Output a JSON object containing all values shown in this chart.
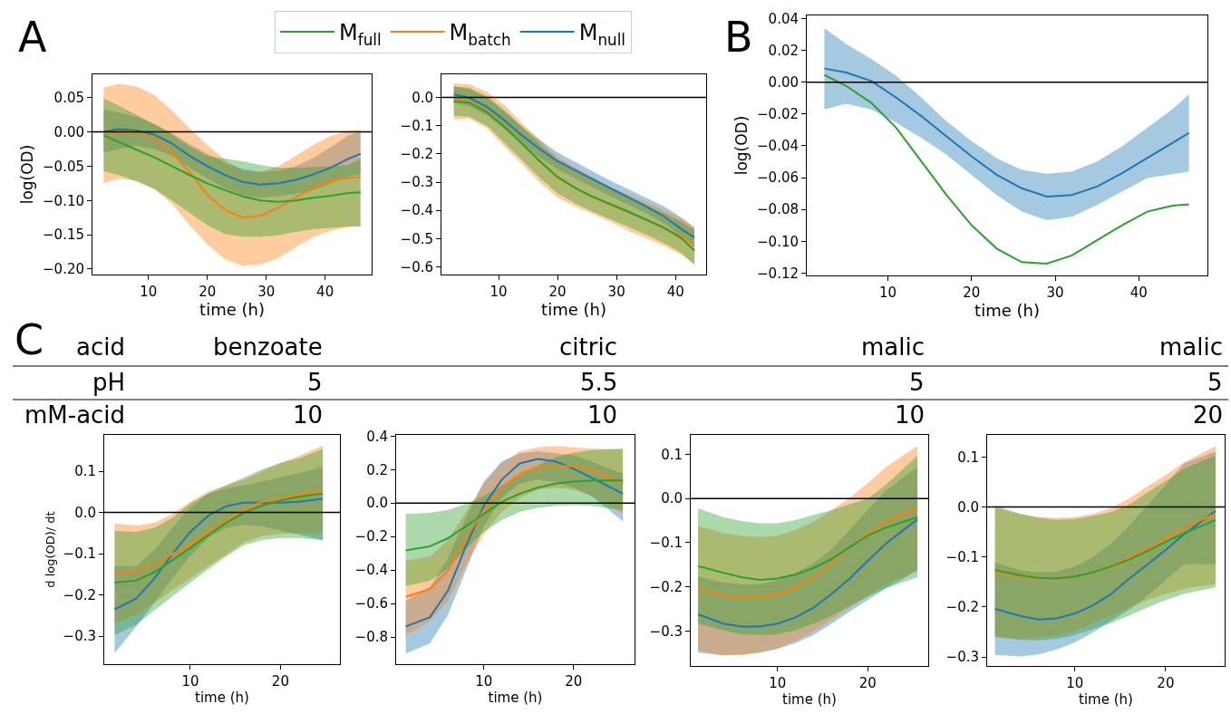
{
  "chart_data": [
    {
      "type": "line",
      "annotations": [
        "A"
      ],
      "xlabel": "time (h)",
      "ylabel": "log(OD)",
      "legend": "top",
      "x": [
        2.4,
        5,
        8,
        11,
        14,
        17,
        20,
        23,
        26,
        29,
        32,
        35,
        38,
        41,
        44,
        46
      ],
      "xlim": [
        0.5,
        47.9
      ],
      "xticks": [
        10,
        20,
        30,
        40
      ],
      "ylim": [
        -0.208,
        0.084
      ],
      "yticks": [
        {
          "value": 0.05,
          "label": "0.05"
        },
        {
          "value": 0,
          "label": "0.00"
        },
        {
          "value": -0.05,
          "label": "−0.05"
        },
        {
          "value": -0.1,
          "label": "−0.10"
        },
        {
          "value": -0.15,
          "label": "−0.15"
        },
        {
          "value": -0.2,
          "label": "−0.20"
        }
      ],
      "ref_lines": [
        {
          "axis": "y",
          "value": 0,
          "color": "#000000"
        }
      ],
      "series": [
        {
          "name": "M$_{null}$",
          "color": "#1f77b4",
          "values": [
            0.0,
            0.004,
            0.002,
            -0.004,
            -0.017,
            -0.035,
            -0.05,
            -0.063,
            -0.073,
            -0.077,
            -0.075,
            -0.07,
            -0.062,
            -0.052,
            -0.039,
            -0.032
          ],
          "upper": [
            0.033,
            0.028,
            0.022,
            0.012,
            -0.002,
            -0.018,
            -0.032,
            -0.045,
            -0.054,
            -0.058,
            -0.057,
            -0.05,
            -0.038,
            -0.022,
            -0.005,
            0.0
          ],
          "lower": [
            -0.03,
            -0.025,
            -0.02,
            -0.025,
            -0.035,
            -0.052,
            -0.068,
            -0.082,
            -0.092,
            -0.096,
            -0.094,
            -0.09,
            -0.085,
            -0.075,
            -0.065,
            -0.062
          ]
        },
        {
          "name": "M$_{batch}$",
          "color": "#ff7f0e",
          "values": [
            -0.002,
            0.0,
            0.0,
            -0.009,
            -0.03,
            -0.059,
            -0.092,
            -0.114,
            -0.125,
            -0.122,
            -0.111,
            -0.096,
            -0.081,
            -0.071,
            -0.067,
            -0.066
          ],
          "upper": [
            0.065,
            0.07,
            0.066,
            0.054,
            0.031,
            0.005,
            -0.019,
            -0.041,
            -0.057,
            -0.059,
            -0.05,
            -0.035,
            -0.019,
            -0.006,
            0.001,
            0.003
          ],
          "lower": [
            -0.075,
            -0.068,
            -0.072,
            -0.083,
            -0.105,
            -0.136,
            -0.164,
            -0.186,
            -0.195,
            -0.193,
            -0.184,
            -0.168,
            -0.153,
            -0.144,
            -0.139,
            -0.138
          ]
        },
        {
          "name": "M$_{full}$",
          "color": "#2ca02c",
          "values": [
            -0.005,
            -0.015,
            -0.026,
            -0.037,
            -0.05,
            -0.063,
            -0.075,
            -0.085,
            -0.094,
            -0.1,
            -0.102,
            -0.1,
            -0.096,
            -0.093,
            -0.089,
            -0.088
          ],
          "upper": [
            0.049,
            0.038,
            0.025,
            0.011,
            -0.004,
            -0.021,
            -0.035,
            -0.039,
            -0.043,
            -0.048,
            -0.052,
            -0.052,
            -0.051,
            -0.05,
            -0.048,
            -0.039
          ],
          "lower": [
            -0.057,
            -0.063,
            -0.072,
            -0.083,
            -0.1,
            -0.118,
            -0.136,
            -0.149,
            -0.153,
            -0.153,
            -0.151,
            -0.146,
            -0.142,
            -0.14,
            -0.138,
            -0.138
          ]
        }
      ]
    },
    {
      "type": "line",
      "xlabel": "time (h)",
      "x": [
        2.4,
        5,
        8,
        11,
        14,
        17,
        20,
        23,
        26,
        29,
        32,
        35,
        38,
        41,
        43.2
      ],
      "xlim": [
        0.3,
        45.2
      ],
      "xticks": [
        10,
        20,
        30,
        40
      ],
      "ylim": [
        -0.627,
        0.082
      ],
      "yticks": [
        {
          "value": 0,
          "label": "0.0"
        },
        {
          "value": -0.1,
          "label": "−0.1"
        },
        {
          "value": -0.2,
          "label": "−0.2"
        },
        {
          "value": -0.3,
          "label": "−0.3"
        },
        {
          "value": -0.4,
          "label": "−0.4"
        },
        {
          "value": -0.5,
          "label": "−0.5"
        },
        {
          "value": -0.6,
          "label": "−0.6"
        }
      ],
      "ref_lines": [
        {
          "axis": "y",
          "value": 0,
          "color": "#000000"
        }
      ],
      "series": [
        {
          "color": "#1f77b4",
          "values": [
            0.011,
            -0.001,
            -0.033,
            -0.081,
            -0.135,
            -0.183,
            -0.226,
            -0.258,
            -0.29,
            -0.322,
            -0.354,
            -0.386,
            -0.42,
            -0.466,
            -0.496
          ],
          "upper": [
            0.04,
            0.03,
            0.0,
            -0.05,
            -0.103,
            -0.15,
            -0.195,
            -0.228,
            -0.262,
            -0.295,
            -0.325,
            -0.355,
            -0.385,
            -0.425,
            -0.46
          ],
          "lower": [
            -0.02,
            -0.03,
            -0.063,
            -0.112,
            -0.165,
            -0.213,
            -0.255,
            -0.288,
            -0.318,
            -0.35,
            -0.38,
            -0.41,
            -0.445,
            -0.49,
            -0.53
          ]
        },
        {
          "color": "#ff7f0e",
          "values": [
            -0.01,
            -0.014,
            -0.049,
            -0.103,
            -0.161,
            -0.226,
            -0.284,
            -0.322,
            -0.354,
            -0.381,
            -0.407,
            -0.434,
            -0.461,
            -0.491,
            -0.525
          ],
          "upper": [
            0.05,
            0.047,
            0.02,
            -0.028,
            -0.092,
            -0.151,
            -0.21,
            -0.247,
            -0.284,
            -0.317,
            -0.343,
            -0.37,
            -0.397,
            -0.429,
            -0.459
          ],
          "lower": [
            -0.078,
            -0.074,
            -0.108,
            -0.174,
            -0.236,
            -0.301,
            -0.354,
            -0.386,
            -0.413,
            -0.44,
            -0.472,
            -0.498,
            -0.525,
            -0.557,
            -0.587
          ]
        },
        {
          "color": "#2ca02c",
          "values": [
            -0.014,
            -0.018,
            -0.052,
            -0.105,
            -0.164,
            -0.226,
            -0.281,
            -0.32,
            -0.352,
            -0.378,
            -0.404,
            -0.432,
            -0.461,
            -0.498,
            -0.542
          ],
          "upper": [
            0.038,
            0.035,
            0.005,
            -0.045,
            -0.105,
            -0.165,
            -0.22,
            -0.255,
            -0.29,
            -0.32,
            -0.35,
            -0.38,
            -0.41,
            -0.44,
            -0.47
          ],
          "lower": [
            -0.065,
            -0.068,
            -0.1,
            -0.16,
            -0.222,
            -0.285,
            -0.34,
            -0.375,
            -0.405,
            -0.432,
            -0.458,
            -0.485,
            -0.515,
            -0.55,
            -0.595
          ]
        }
      ]
    },
    {
      "type": "line",
      "annotations": [
        "B"
      ],
      "xlabel": "time (h)",
      "ylabel": "log(OD)",
      "x": [
        2.4,
        5,
        8,
        11,
        14,
        17,
        20,
        23,
        26,
        29,
        32,
        35,
        38,
        41,
        44,
        46
      ],
      "xlim": [
        0.3,
        48.2
      ],
      "xticks": [
        10,
        20,
        30,
        40
      ],
      "ylim": [
        -0.1215,
        0.042
      ],
      "yticks": [
        {
          "value": 0.04,
          "label": "0.04"
        },
        {
          "value": 0.02,
          "label": "0.02"
        },
        {
          "value": 0,
          "label": "0.00"
        },
        {
          "value": -0.02,
          "label": "−0.02"
        },
        {
          "value": -0.04,
          "label": "−0.04"
        },
        {
          "value": -0.06,
          "label": "−0.06"
        },
        {
          "value": -0.08,
          "label": "−0.08"
        },
        {
          "value": -0.1,
          "label": "−0.10"
        },
        {
          "value": -0.12,
          "label": "−0.12"
        }
      ],
      "ref_lines": [
        {
          "axis": "y",
          "value": 0,
          "color": "#000000"
        }
      ],
      "series": [
        {
          "color": "#1f77b4",
          "values": [
            0.0086,
            0.0061,
            0.0008,
            -0.0097,
            -0.0213,
            -0.034,
            -0.0466,
            -0.0582,
            -0.0667,
            -0.0719,
            -0.0709,
            -0.0656,
            -0.0572,
            -0.0477,
            -0.0382,
            -0.0319
          ],
          "upper": [
            0.034,
            0.024,
            0.0146,
            0.004,
            -0.0097,
            -0.0245,
            -0.0371,
            -0.0477,
            -0.0551,
            -0.0576,
            -0.0561,
            -0.0498,
            -0.0403,
            -0.0287,
            -0.0171,
            -0.0076
          ],
          "lower": [
            -0.0171,
            -0.0135,
            -0.0171,
            -0.0255,
            -0.035,
            -0.0456,
            -0.0582,
            -0.0709,
            -0.0814,
            -0.0867,
            -0.0846,
            -0.0772,
            -0.0688,
            -0.0603,
            -0.0578,
            -0.0561
          ]
        },
        {
          "color": "#2ca02c",
          "values": [
            0.0046,
            -0.0023,
            -0.0129,
            -0.0287,
            -0.0498,
            -0.0709,
            -0.0899,
            -0.1046,
            -0.1131,
            -0.1141,
            -0.1089,
            -0.0994,
            -0.0899,
            -0.0814,
            -0.0776,
            -0.0768
          ]
        }
      ]
    },
    {
      "type": "other",
      "title": "C",
      "annotations": [
        "acid",
        "benzoate",
        "citric",
        "malic",
        "malic",
        "pH",
        "5",
        "5.5",
        "5",
        "5",
        "mM-acid",
        "10",
        "10",
        "10",
        "20"
      ]
    },
    {
      "type": "line",
      "xlabel": "time (h)",
      "ylabel": "d log(OD)/ dt",
      "x": [
        1.6,
        4,
        6,
        8,
        10,
        12,
        14,
        16,
        18,
        20,
        22,
        24.7
      ],
      "xlim": [
        0.45,
        26.6
      ],
      "xticks": [
        10,
        20
      ],
      "ylim": [
        -0.368,
        0.188
      ],
      "yticks": [
        {
          "value": 0.1,
          "label": "0.1"
        },
        {
          "value": 0,
          "label": "0.0"
        },
        {
          "value": -0.1,
          "label": "−0.1"
        },
        {
          "value": -0.2,
          "label": "−0.2"
        },
        {
          "value": -0.3,
          "label": "−0.3"
        }
      ],
      "ref_lines": [
        {
          "axis": "y",
          "value": 0,
          "color": "#000000"
        }
      ],
      "series": [
        {
          "color": "#1f77b4",
          "values": [
            -0.235,
            -0.209,
            -0.16,
            -0.101,
            -0.047,
            -0.008,
            0.015,
            0.024,
            0.024,
            0.024,
            0.026,
            0.033
          ],
          "upper": [
            -0.13,
            -0.13,
            -0.091,
            -0.037,
            0.012,
            0.046,
            0.058,
            0.066,
            0.075,
            0.085,
            0.095,
            0.11
          ],
          "lower": [
            -0.341,
            -0.277,
            -0.219,
            -0.16,
            -0.106,
            -0.062,
            -0.037,
            -0.03,
            -0.034,
            -0.044,
            -0.054,
            -0.067
          ]
        },
        {
          "color": "#ff7f0e",
          "values": [
            -0.148,
            -0.142,
            -0.125,
            -0.101,
            -0.076,
            -0.047,
            -0.018,
            0.009,
            0.026,
            0.033,
            0.043,
            0.056
          ],
          "upper": [
            -0.027,
            -0.032,
            -0.025,
            -0.003,
            0.026,
            0.051,
            0.066,
            0.08,
            0.1,
            0.12,
            0.137,
            0.162
          ],
          "lower": [
            -0.268,
            -0.249,
            -0.219,
            -0.189,
            -0.16,
            -0.13,
            -0.101,
            -0.072,
            -0.057,
            -0.052,
            -0.05,
            -0.05
          ]
        },
        {
          "color": "#2ca02c",
          "values": [
            -0.17,
            -0.165,
            -0.145,
            -0.116,
            -0.086,
            -0.055,
            -0.025,
            0.0,
            0.017,
            0.029,
            0.038,
            0.046
          ],
          "upper": [
            -0.045,
            -0.047,
            -0.037,
            -0.013,
            0.022,
            0.046,
            0.066,
            0.085,
            0.105,
            0.12,
            0.131,
            0.154
          ],
          "lower": [
            -0.297,
            -0.273,
            -0.238,
            -0.204,
            -0.17,
            -0.138,
            -0.106,
            -0.079,
            -0.067,
            -0.062,
            -0.062,
            -0.067
          ]
        }
      ]
    },
    {
      "type": "line",
      "xlabel": "time (h)",
      "x": [
        1.3,
        4,
        6,
        8,
        10,
        12,
        14,
        16,
        18,
        20,
        22,
        25.5
      ],
      "xlim": [
        0.23,
        26.8
      ],
      "xticks": [
        10,
        20
      ],
      "ylim": [
        -0.962,
        0.407
      ],
      "yticks": [
        {
          "value": 0.4,
          "label": "0.4"
        },
        {
          "value": 0.2,
          "label": "0.2"
        },
        {
          "value": 0,
          "label": "0.0"
        },
        {
          "value": -0.2,
          "label": "−0.2"
        },
        {
          "value": -0.4,
          "label": "−0.4"
        },
        {
          "value": -0.6,
          "label": "−0.6"
        },
        {
          "value": -0.8,
          "label": "−0.8"
        }
      ],
      "ref_lines": [
        {
          "axis": "y",
          "value": 0,
          "color": "#000000"
        }
      ],
      "series": [
        {
          "color": "#1f77b4",
          "values": [
            -0.737,
            -0.681,
            -0.524,
            -0.258,
            -0.017,
            0.14,
            0.237,
            0.263,
            0.249,
            0.205,
            0.152,
            0.056
          ],
          "upper": [
            -0.585,
            -0.5,
            -0.331,
            -0.089,
            0.128,
            0.249,
            0.297,
            0.309,
            0.297,
            0.285,
            0.249,
            0.176
          ],
          "lower": [
            -0.899,
            -0.838,
            -0.669,
            -0.403,
            -0.138,
            0.031,
            0.116,
            0.14,
            0.123,
            0.092,
            0.043,
            -0.109
          ]
        },
        {
          "color": "#ff7f0e",
          "values": [
            -0.56,
            -0.512,
            -0.403,
            -0.21,
            -0.041,
            0.092,
            0.176,
            0.213,
            0.22,
            0.22,
            0.2,
            0.121
          ],
          "upper": [
            -0.343,
            -0.319,
            -0.222,
            -0.053,
            0.116,
            0.237,
            0.309,
            0.333,
            0.341,
            0.333,
            0.326,
            0.321
          ],
          "lower": [
            -0.79,
            -0.705,
            -0.585,
            -0.367,
            -0.186,
            -0.053,
            0.031,
            0.08,
            0.092,
            0.08,
            0.043,
            -0.065
          ]
        },
        {
          "color": "#2ca02c",
          "values": [
            -0.283,
            -0.258,
            -0.21,
            -0.138,
            -0.065,
            0.007,
            0.056,
            0.092,
            0.116,
            0.128,
            0.135,
            0.135
          ],
          "upper": [
            -0.065,
            -0.058,
            -0.041,
            -0.005,
            0.043,
            0.104,
            0.164,
            0.225,
            0.273,
            0.302,
            0.316,
            0.326
          ],
          "lower": [
            -0.495,
            -0.464,
            -0.391,
            -0.271,
            -0.174,
            -0.101,
            -0.053,
            -0.029,
            -0.017,
            -0.012,
            -0.017,
            -0.041
          ]
        }
      ]
    },
    {
      "type": "line",
      "xlabel": "time (h)",
      "x": [
        1.2,
        4,
        6,
        8,
        10,
        12,
        14,
        16,
        18,
        20,
        22,
        25.5
      ],
      "xlim": [
        0.39,
        26.7
      ],
      "xticks": [
        10,
        20
      ],
      "ylim": [
        -0.379,
        0.144
      ],
      "yticks": [
        {
          "value": 0.1,
          "label": "0.1"
        },
        {
          "value": 0,
          "label": "0.0"
        },
        {
          "value": -0.1,
          "label": "−0.1"
        },
        {
          "value": -0.2,
          "label": "−0.2"
        },
        {
          "value": -0.3,
          "label": "−0.3"
        }
      ],
      "ref_lines": [
        {
          "axis": "y",
          "value": 0,
          "color": "#000000"
        }
      ],
      "series": [
        {
          "color": "#1f77b4",
          "values": [
            -0.262,
            -0.283,
            -0.29,
            -0.29,
            -0.283,
            -0.269,
            -0.247,
            -0.216,
            -0.181,
            -0.141,
            -0.102,
            -0.047
          ],
          "upper": [
            -0.177,
            -0.19,
            -0.194,
            -0.194,
            -0.185,
            -0.168,
            -0.146,
            -0.115,
            -0.071,
            -0.026,
            0.018,
            0.071
          ],
          "lower": [
            -0.349,
            -0.355,
            -0.353,
            -0.349,
            -0.34,
            -0.327,
            -0.309,
            -0.283,
            -0.256,
            -0.23,
            -0.203,
            -0.163
          ]
        },
        {
          "color": "#ff7f0e",
          "values": [
            -0.203,
            -0.219,
            -0.223,
            -0.223,
            -0.216,
            -0.201,
            -0.177,
            -0.146,
            -0.11,
            -0.079,
            -0.051,
            -0.019
          ],
          "upper": [
            -0.062,
            -0.078,
            -0.084,
            -0.087,
            -0.084,
            -0.071,
            -0.053,
            -0.026,
            0.002,
            0.035,
            0.071,
            0.119
          ],
          "lower": [
            -0.344,
            -0.355,
            -0.355,
            -0.349,
            -0.34,
            -0.322,
            -0.3,
            -0.274,
            -0.247,
            -0.221,
            -0.194,
            -0.163
          ]
        },
        {
          "color": "#2ca02c",
          "values": [
            -0.153,
            -0.168,
            -0.178,
            -0.184,
            -0.181,
            -0.172,
            -0.157,
            -0.137,
            -0.11,
            -0.084,
            -0.066,
            -0.042
          ],
          "upper": [
            -0.022,
            -0.042,
            -0.051,
            -0.056,
            -0.056,
            -0.049,
            -0.037,
            -0.026,
            -0.013,
            0.0,
            0.031,
            0.097
          ],
          "lower": [
            -0.283,
            -0.298,
            -0.307,
            -0.309,
            -0.307,
            -0.298,
            -0.283,
            -0.265,
            -0.243,
            -0.221,
            -0.203,
            -0.178
          ]
        }
      ]
    },
    {
      "type": "line",
      "xlabel": "time (h)",
      "x": [
        1.2,
        4,
        6,
        8,
        10,
        12,
        14,
        16,
        18,
        20,
        22,
        25.5
      ],
      "xlim": [
        0.34,
        26.5
      ],
      "xticks": [
        10,
        20
      ],
      "ylim": [
        -0.318,
        0.144
      ],
      "yticks": [
        {
          "value": 0.1,
          "label": "0.1"
        },
        {
          "value": 0,
          "label": "0.0"
        },
        {
          "value": -0.1,
          "label": "−0.1"
        },
        {
          "value": -0.2,
          "label": "−0.2"
        },
        {
          "value": -0.3,
          "label": "−0.3"
        }
      ],
      "ref_lines": [
        {
          "axis": "y",
          "value": 0,
          "color": "#000000"
        }
      ],
      "series": [
        {
          "color": "#1f77b4",
          "values": [
            -0.204,
            -0.218,
            -0.225,
            -0.223,
            -0.213,
            -0.197,
            -0.174,
            -0.143,
            -0.115,
            -0.086,
            -0.055,
            -0.008
          ],
          "upper": [
            -0.111,
            -0.127,
            -0.131,
            -0.129,
            -0.119,
            -0.1,
            -0.073,
            -0.037,
            0.003,
            0.044,
            0.087,
            0.111
          ],
          "lower": [
            -0.296,
            -0.299,
            -0.295,
            -0.285,
            -0.271,
            -0.251,
            -0.228,
            -0.205,
            -0.178,
            -0.147,
            -0.115,
            -0.114
          ]
        },
        {
          "color": "#ff7f0e",
          "values": [
            -0.129,
            -0.139,
            -0.144,
            -0.145,
            -0.14,
            -0.131,
            -0.118,
            -0.101,
            -0.083,
            -0.062,
            -0.041,
            -0.014
          ],
          "upper": [
            -0.002,
            -0.014,
            -0.02,
            -0.022,
            -0.02,
            -0.014,
            -0.002,
            0.017,
            0.041,
            0.064,
            0.089,
            0.122
          ],
          "lower": [
            -0.26,
            -0.264,
            -0.262,
            -0.257,
            -0.248,
            -0.232,
            -0.217,
            -0.201,
            -0.186,
            -0.174,
            -0.164,
            -0.154
          ]
        },
        {
          "color": "#2ca02c",
          "values": [
            -0.126,
            -0.137,
            -0.142,
            -0.143,
            -0.139,
            -0.131,
            -0.119,
            -0.105,
            -0.088,
            -0.07,
            -0.053,
            -0.026
          ],
          "upper": [
            0.003,
            -0.014,
            -0.022,
            -0.026,
            -0.024,
            -0.018,
            -0.01,
            0.005,
            0.029,
            0.052,
            0.076,
            0.103
          ],
          "lower": [
            -0.26,
            -0.266,
            -0.267,
            -0.264,
            -0.256,
            -0.244,
            -0.232,
            -0.217,
            -0.201,
            -0.186,
            -0.174,
            -0.161
          ]
        }
      ]
    }
  ]
}
